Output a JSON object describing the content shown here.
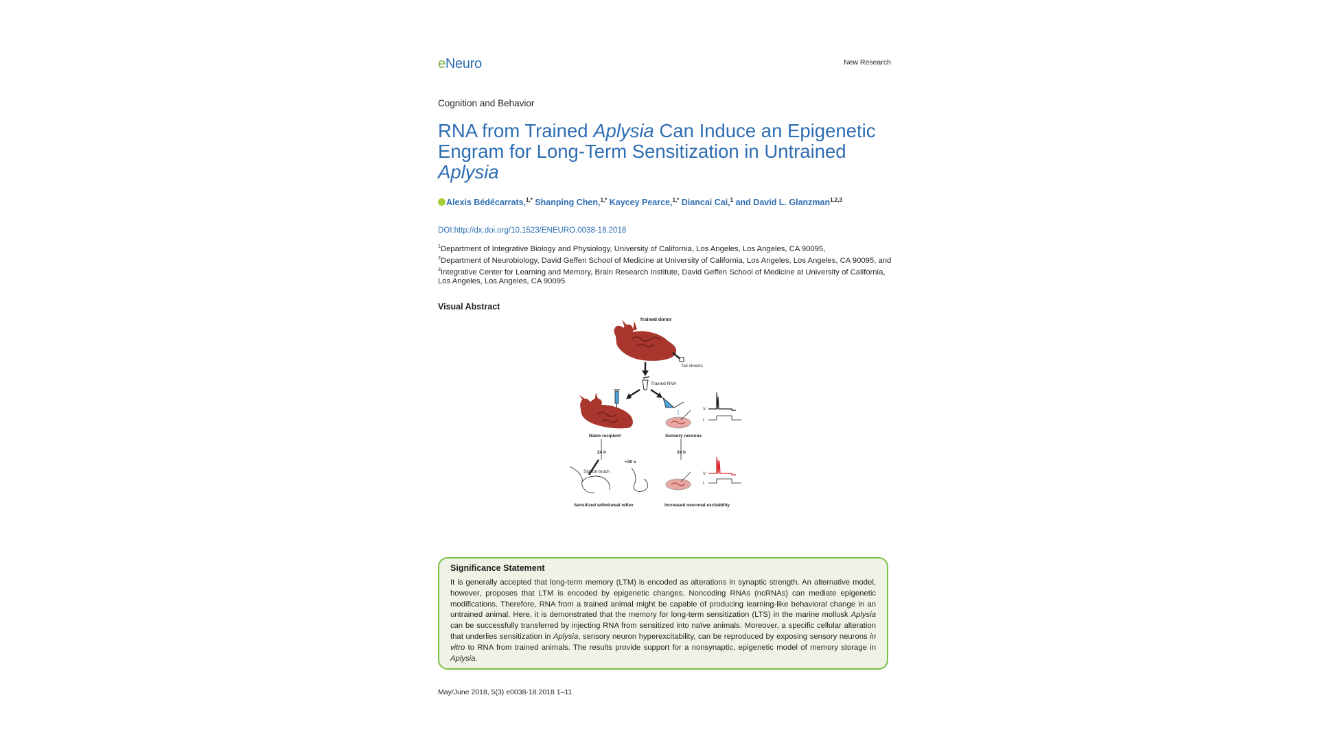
{
  "header": {
    "logo_e": "e",
    "logo_n": "N",
    "logo_rest": "euro",
    "section": "New Research"
  },
  "article": {
    "category": "Cognition and Behavior",
    "title_parts": [
      "RNA from Trained ",
      "Aplysia",
      " Can Induce an Epigenetic Engram for Long-Term Sensitization in Untrained ",
      "Aplysia"
    ],
    "authors": [
      {
        "name": "Alexis Bédécarrats,",
        "aff": "1,*"
      },
      {
        "name": "Shanping Chen,",
        "aff": "1,*"
      },
      {
        "name": "Kaycey Pearce,",
        "aff": "1,*"
      },
      {
        "name": "Diancai Cai,",
        "aff": "1"
      },
      {
        "name": "and David L. Glanzman",
        "aff": "1,2,3"
      }
    ],
    "doi_label": "DOI:",
    "doi_url": "http://dx.doi.org/10.1523/ENEURO.0038-18.2018",
    "affiliations": [
      {
        "num": "1",
        "text": "Department of Integrative Biology and Physiology, University of California, Los Angeles, Los Angeles, CA 90095,"
      },
      {
        "num": "2",
        "text": "Department of Neurobiology, David Geffen School of Medicine at University of California, Los Angeles, Los Angeles, CA 90095, and "
      },
      {
        "num": "3",
        "text": "Integrative Center for Learning and Memory, Brain Research Institute, David Geffen School of Medicine at University of California, Los Angeles, Los Angeles, CA 90095"
      }
    ]
  },
  "visual_abstract": {
    "heading": "Visual Abstract",
    "labels": {
      "trained_donor": "Trained donor",
      "tail_shocks": "Tail shocks",
      "trained_rna": "Trained RNA",
      "naive_recipient": "Naive recipient",
      "sensory_neurons": "Sensory neurons",
      "h24_left": "24 h",
      "h24_right": "24 h",
      "plus30s": "+30 s",
      "siphon_touch": "Siphon touch",
      "sensitized_reflex": "Sensitized withdrawal reflex",
      "increased_excitability": "Increased neuronal excitability",
      "v_top": "V",
      "i_top": "I",
      "v_bottom": "V",
      "i_bottom": "I"
    },
    "colors": {
      "aplysia": "#a8362c",
      "aplysia_dark": "#7a231c",
      "dish": "#e8a7a2",
      "trace_red": "#d8262b",
      "rna_blue": "#4aa3d8"
    }
  },
  "significance": {
    "heading": "Significance Statement",
    "segments": [
      {
        "t": "It is generally accepted that long-term memory (LTM) is encoded as alterations in synaptic strength. An alternative model, however, proposes that LTM is encoded by epigenetic changes. Noncoding RNAs (ncRNAs) can mediate epigenetic modifications. Therefore, RNA from a trained animal might be capable of producing learning-like behavioral change in an untrained animal. Here, it is demonstrated that the memory for long-term sensitization (LTS) in the marine mollusk ",
        "i": false
      },
      {
        "t": "Aplysia",
        "i": true
      },
      {
        "t": " can be successfully transferred by injecting RNA from sensitized into naïve animals. Moreover, a specific cellular alteration that underlies sensitization in ",
        "i": false
      },
      {
        "t": "Aplysia",
        "i": true
      },
      {
        "t": ", sensory neuron hyperexcitability, can be reproduced by exposing sensory neurons ",
        "i": false
      },
      {
        "t": "in vitro",
        "i": true
      },
      {
        "t": " to RNA from trained animals. The results provide support for a nonsynaptic, epigenetic model of memory storage in ",
        "i": false
      },
      {
        "t": "Aplysia",
        "i": true
      },
      {
        "t": ".",
        "i": false
      }
    ]
  },
  "footer": {
    "citation": "May/June 2018, 5(3) e0038-18.2018 1–11"
  }
}
